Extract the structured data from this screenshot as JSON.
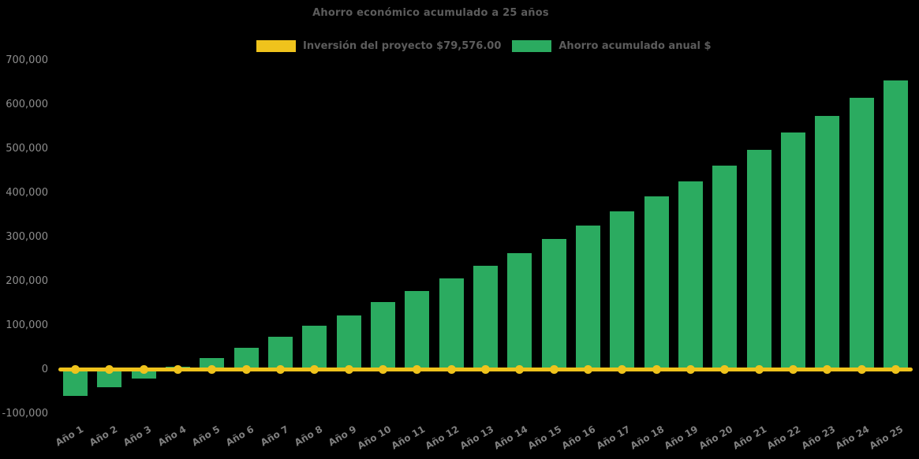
{
  "chart": {
    "background": "#000000",
    "title_color": "#5c5c5c",
    "axis_label_color": "#8e8e8e",
    "x_label_color": "#7f7f7f"
  },
  "chart_data": {
    "type": "bar",
    "title": "Ahorro económico acumulado a 25 años",
    "categories": [
      "Año 1",
      "Año 2",
      "Año 3",
      "Año 4",
      "Año 5",
      "Año 6",
      "Año 7",
      "Año 8",
      "Año 9",
      "Año 10",
      "Año 11",
      "Año 12",
      "Año 13",
      "Año 14",
      "Año 15",
      "Año 16",
      "Año 17",
      "Año 18",
      "Año 19",
      "Año 20",
      "Año 21",
      "Año 22",
      "Año 23",
      "Año 24",
      "Año 25"
    ],
    "series": [
      {
        "name": "Inversión del proyecto $79,576.00",
        "type": "line",
        "color": "#efc31c",
        "marker": "circle",
        "values": [
          0,
          0,
          0,
          0,
          0,
          0,
          0,
          0,
          0,
          0,
          0,
          0,
          0,
          0,
          0,
          0,
          0,
          0,
          0,
          0,
          0,
          0,
          0,
          0,
          0
        ]
      },
      {
        "name": "Ahorro acumulado anual $",
        "type": "column",
        "color": "#2bab60",
        "values": [
          -60000,
          -40000,
          -21000,
          7000,
          26000,
          50000,
          74000,
          99000,
          123000,
          152000,
          178000,
          206000,
          234000,
          264000,
          295000,
          326000,
          358000,
          392000,
          426000,
          461000,
          498000,
          536000,
          574000,
          616000,
          655000
        ]
      }
    ],
    "ylim": [
      -100000,
      700000
    ],
    "ytick_interval": 100000,
    "ytick_labels": [
      "-100,000",
      "0",
      "100,000",
      "200,000",
      "300,000",
      "400,000",
      "500,000",
      "600,000",
      "700,000"
    ],
    "grid": false,
    "legend_position": "top",
    "xlabel": "",
    "ylabel": ""
  }
}
